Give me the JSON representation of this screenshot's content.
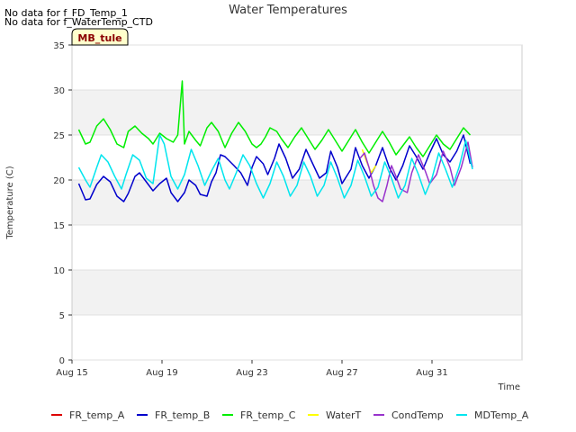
{
  "notices": [
    "No data for f_FD_Temp_1",
    "No data for f_WaterTemp_CTD"
  ],
  "site_badge": "MB_tule",
  "colors": {
    "FR_temp_A": "#dd0000",
    "FR_temp_B": "#0000cc",
    "FR_temp_C": "#00ee00",
    "WaterT": "#ffff00",
    "CondTemp": "#9933cc",
    "MDTemp_A": "#00e5ee",
    "band": "#f2f2f2",
    "badge_fill": "#ffffcc",
    "badge_text": "#8b0000"
  },
  "chart_data": {
    "type": "line",
    "title": "Water Temperatures",
    "xlabel": "Time",
    "ylabel": "Temperature (C)",
    "x_unit": "day of August",
    "xlim": [
      15,
      35
    ],
    "ylim": [
      0,
      35
    ],
    "yticks": [
      0,
      5,
      10,
      15,
      20,
      25,
      30,
      35
    ],
    "xticks": [
      {
        "value": 15,
        "label": "Aug 15"
      },
      {
        "value": 19,
        "label": "Aug 19"
      },
      {
        "value": 23,
        "label": "Aug 23"
      },
      {
        "value": 27,
        "label": "Aug 27"
      },
      {
        "value": 31,
        "label": "Aug 31"
      }
    ],
    "alternating_bands": true,
    "legend_position": "bottom",
    "series": [
      {
        "name": "FR_temp_A",
        "points": []
      },
      {
        "name": "FR_temp_B",
        "points": [
          [
            15.3,
            19.6
          ],
          [
            15.6,
            17.8
          ],
          [
            15.8,
            17.9
          ],
          [
            16.1,
            19.5
          ],
          [
            16.4,
            20.4
          ],
          [
            16.7,
            19.8
          ],
          [
            17.0,
            18.2
          ],
          [
            17.3,
            17.6
          ],
          [
            17.5,
            18.5
          ],
          [
            17.8,
            20.4
          ],
          [
            18.0,
            20.8
          ],
          [
            18.3,
            19.8
          ],
          [
            18.6,
            18.8
          ],
          [
            18.9,
            19.6
          ],
          [
            19.2,
            20.2
          ],
          [
            19.4,
            18.6
          ],
          [
            19.7,
            17.6
          ],
          [
            20.0,
            18.6
          ],
          [
            20.2,
            20.0
          ],
          [
            20.5,
            19.4
          ],
          [
            20.7,
            18.4
          ],
          [
            21.0,
            18.2
          ],
          [
            21.2,
            19.8
          ],
          [
            21.4,
            20.8
          ],
          [
            21.6,
            22.8
          ],
          [
            21.8,
            22.6
          ],
          [
            22.2,
            21.6
          ],
          [
            22.5,
            20.8
          ],
          [
            22.8,
            19.4
          ],
          [
            23.0,
            21.4
          ],
          [
            23.2,
            22.6
          ],
          [
            23.5,
            21.8
          ],
          [
            23.7,
            20.6
          ],
          [
            24.0,
            22.4
          ],
          [
            24.2,
            24.0
          ],
          [
            24.5,
            22.4
          ],
          [
            24.8,
            20.2
          ],
          [
            25.1,
            21.2
          ],
          [
            25.4,
            23.4
          ],
          [
            25.7,
            21.8
          ],
          [
            26.0,
            20.2
          ],
          [
            26.3,
            20.8
          ],
          [
            26.5,
            23.2
          ],
          [
            26.8,
            21.4
          ],
          [
            27.0,
            19.6
          ],
          [
            27.4,
            21.2
          ],
          [
            27.6,
            23.6
          ],
          [
            27.9,
            21.6
          ],
          [
            28.2,
            20.2
          ],
          [
            28.5,
            21.6
          ],
          [
            28.8,
            23.6
          ],
          [
            29.1,
            21.4
          ],
          [
            29.4,
            20.0
          ],
          [
            29.7,
            21.6
          ],
          [
            30.0,
            23.8
          ],
          [
            30.3,
            22.6
          ],
          [
            30.6,
            21.2
          ],
          [
            30.9,
            23.0
          ],
          [
            31.2,
            24.6
          ],
          [
            31.5,
            22.8
          ],
          [
            31.8,
            22.0
          ],
          [
            32.1,
            23.2
          ],
          [
            32.4,
            25.0
          ],
          [
            32.7,
            21.8
          ]
        ]
      },
      {
        "name": "FR_temp_C",
        "points": [
          [
            15.3,
            25.6
          ],
          [
            15.6,
            24.0
          ],
          [
            15.8,
            24.2
          ],
          [
            16.1,
            26.0
          ],
          [
            16.4,
            26.8
          ],
          [
            16.7,
            25.6
          ],
          [
            17.0,
            24.0
          ],
          [
            17.3,
            23.6
          ],
          [
            17.5,
            25.4
          ],
          [
            17.8,
            26.0
          ],
          [
            18.1,
            25.2
          ],
          [
            18.4,
            24.6
          ],
          [
            18.6,
            24.0
          ],
          [
            18.9,
            25.2
          ],
          [
            19.2,
            24.6
          ],
          [
            19.5,
            24.2
          ],
          [
            19.7,
            25.0
          ],
          [
            19.9,
            31.0
          ],
          [
            20.0,
            24.0
          ],
          [
            20.2,
            25.4
          ],
          [
            20.5,
            24.4
          ],
          [
            20.7,
            23.8
          ],
          [
            21.0,
            25.8
          ],
          [
            21.2,
            26.4
          ],
          [
            21.5,
            25.4
          ],
          [
            21.8,
            23.6
          ],
          [
            22.1,
            25.2
          ],
          [
            22.4,
            26.4
          ],
          [
            22.7,
            25.4
          ],
          [
            23.0,
            24.0
          ],
          [
            23.2,
            23.6
          ],
          [
            23.4,
            24.0
          ],
          [
            23.6,
            24.8
          ],
          [
            23.8,
            25.8
          ],
          [
            24.1,
            25.4
          ],
          [
            24.3,
            24.6
          ],
          [
            24.6,
            23.6
          ],
          [
            24.9,
            24.8
          ],
          [
            25.2,
            25.8
          ],
          [
            25.5,
            24.6
          ],
          [
            25.8,
            23.4
          ],
          [
            26.1,
            24.4
          ],
          [
            26.4,
            25.6
          ],
          [
            26.7,
            24.4
          ],
          [
            27.0,
            23.2
          ],
          [
            27.3,
            24.4
          ],
          [
            27.6,
            25.6
          ],
          [
            27.9,
            24.2
          ],
          [
            28.2,
            23.0
          ],
          [
            28.5,
            24.2
          ],
          [
            28.8,
            25.4
          ],
          [
            29.1,
            24.2
          ],
          [
            29.4,
            22.8
          ],
          [
            29.7,
            23.8
          ],
          [
            30.0,
            24.8
          ],
          [
            30.3,
            23.6
          ],
          [
            30.6,
            22.6
          ],
          [
            30.9,
            23.8
          ],
          [
            31.2,
            25.0
          ],
          [
            31.5,
            24.0
          ],
          [
            31.8,
            23.4
          ],
          [
            32.1,
            24.6
          ],
          [
            32.4,
            25.8
          ],
          [
            32.7,
            25.0
          ]
        ]
      },
      {
        "name": "WaterT",
        "points": [
          [
            27.9,
            23.4
          ],
          [
            28.1,
            22.0
          ],
          [
            28.3,
            20.8
          ],
          [
            28.5,
            21.6
          ]
        ]
      },
      {
        "name": "CondTemp",
        "points": [
          [
            27.8,
            22.4
          ],
          [
            28.0,
            23.0
          ],
          [
            28.2,
            21.4
          ],
          [
            28.4,
            19.4
          ],
          [
            28.6,
            18.0
          ],
          [
            28.8,
            17.6
          ],
          [
            29.0,
            19.4
          ],
          [
            29.2,
            21.6
          ],
          [
            29.4,
            20.4
          ],
          [
            29.6,
            19.0
          ],
          [
            29.9,
            18.6
          ],
          [
            30.1,
            20.8
          ],
          [
            30.4,
            22.8
          ],
          [
            30.7,
            21.0
          ],
          [
            30.9,
            19.6
          ],
          [
            31.2,
            20.6
          ],
          [
            31.5,
            23.2
          ],
          [
            31.8,
            21.4
          ],
          [
            32.0,
            19.4
          ],
          [
            32.3,
            21.4
          ],
          [
            32.6,
            24.2
          ],
          [
            32.8,
            21.4
          ]
        ]
      },
      {
        "name": "MDTemp_A",
        "points": [
          [
            15.3,
            21.4
          ],
          [
            15.6,
            20.0
          ],
          [
            15.8,
            19.2
          ],
          [
            16.1,
            21.4
          ],
          [
            16.3,
            22.8
          ],
          [
            16.6,
            22.0
          ],
          [
            16.9,
            20.4
          ],
          [
            17.2,
            19.0
          ],
          [
            17.4,
            20.6
          ],
          [
            17.7,
            22.8
          ],
          [
            18.0,
            22.2
          ],
          [
            18.3,
            20.2
          ],
          [
            18.6,
            19.6
          ],
          [
            18.9,
            25.0
          ],
          [
            19.1,
            24.0
          ],
          [
            19.4,
            20.4
          ],
          [
            19.7,
            19.0
          ],
          [
            20.0,
            20.6
          ],
          [
            20.3,
            23.4
          ],
          [
            20.6,
            21.6
          ],
          [
            20.9,
            19.4
          ],
          [
            21.2,
            21.0
          ],
          [
            21.5,
            22.4
          ],
          [
            21.8,
            20.0
          ],
          [
            22.0,
            19.0
          ],
          [
            22.3,
            20.8
          ],
          [
            22.6,
            22.8
          ],
          [
            22.9,
            21.6
          ],
          [
            23.2,
            19.6
          ],
          [
            23.5,
            18.0
          ],
          [
            23.8,
            19.6
          ],
          [
            24.1,
            22.0
          ],
          [
            24.4,
            20.4
          ],
          [
            24.7,
            18.2
          ],
          [
            25.0,
            19.4
          ],
          [
            25.3,
            22.0
          ],
          [
            25.6,
            20.4
          ],
          [
            25.9,
            18.2
          ],
          [
            26.2,
            19.4
          ],
          [
            26.5,
            22.0
          ],
          [
            26.8,
            20.2
          ],
          [
            27.1,
            18.0
          ],
          [
            27.4,
            19.4
          ],
          [
            27.7,
            22.2
          ],
          [
            28.0,
            20.4
          ],
          [
            28.3,
            18.2
          ],
          [
            28.6,
            19.2
          ],
          [
            28.9,
            22.0
          ],
          [
            29.2,
            20.2
          ],
          [
            29.5,
            18.0
          ],
          [
            29.8,
            19.4
          ],
          [
            30.1,
            22.4
          ],
          [
            30.4,
            20.6
          ],
          [
            30.7,
            18.4
          ],
          [
            31.0,
            20.2
          ],
          [
            31.3,
            23.0
          ],
          [
            31.6,
            21.2
          ],
          [
            31.9,
            19.2
          ],
          [
            32.2,
            21.4
          ],
          [
            32.5,
            24.4
          ],
          [
            32.8,
            21.2
          ]
        ]
      }
    ]
  }
}
